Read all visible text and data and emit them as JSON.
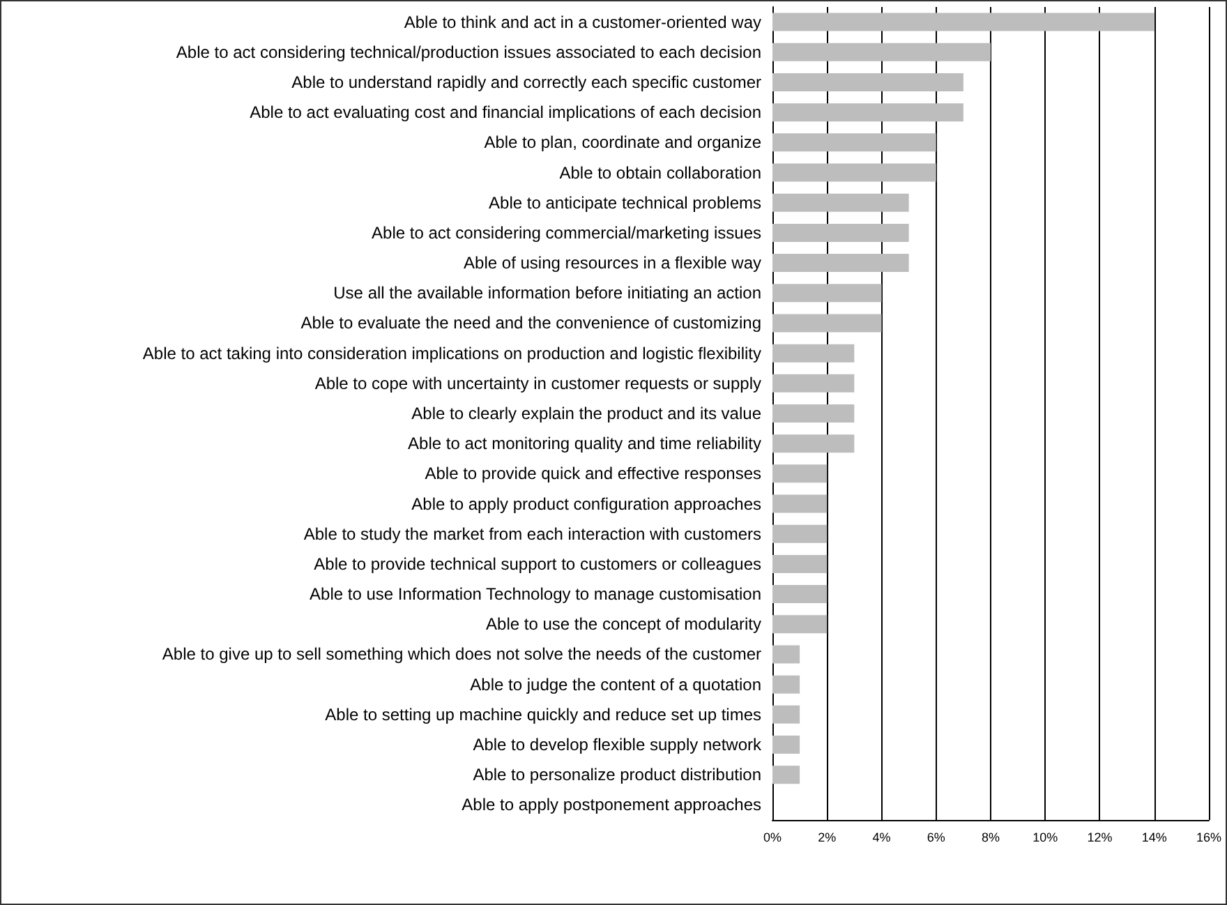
{
  "chart_data": {
    "type": "bar",
    "orientation": "horizontal",
    "categories": [
      "Able to think and act in a customer-oriented way",
      "Able to act considering technical/production issues associated to each decision",
      "Able to understand rapidly and correctly each specific customer",
      "Able to act evaluating cost and financial implications of each decision",
      "Able to plan, coordinate and organize",
      "Able to obtain collaboration",
      "Able to anticipate technical problems",
      "Able to act considering commercial/marketing issues",
      "Able of using resources in a flexible way",
      "Use all the available information before initiating an action",
      "Able to evaluate the need and the convenience of customizing",
      "Able to act taking into consideration implications on production and logistic flexibility",
      "Able to cope with uncertainty in customer requests or supply",
      "Able to clearly explain the product and its value",
      "Able to act monitoring quality and time reliability",
      "Able to provide quick and effective responses",
      "Able to apply product configuration approaches",
      "Able to study the market from each interaction with customers",
      "Able to provide technical support to customers or colleagues",
      "Able to use Information Technology to manage customisation",
      "Able to use the concept of modularity",
      "Able to give up to sell something which does not solve the needs of the customer",
      "Able to judge the content of a quotation",
      "Able to setting up machine quickly and reduce set up times",
      "Able to develop flexible supply network",
      "Able to personalize product distribution",
      "Able to apply postponement approaches"
    ],
    "values": [
      14,
      8,
      7,
      7,
      6,
      6,
      5,
      5,
      5,
      4,
      4,
      3,
      3,
      3,
      3,
      2,
      2,
      2,
      2,
      2,
      2,
      1,
      1,
      1,
      1,
      1,
      0
    ],
    "color": "#bdbdbd",
    "xlim": [
      0,
      16
    ],
    "xticks": [
      {
        "value": 0,
        "label": "0%"
      },
      {
        "value": 2,
        "label": "2%"
      },
      {
        "value": 4,
        "label": "4%"
      },
      {
        "value": 6,
        "label": "6%"
      },
      {
        "value": 8,
        "label": "8%"
      },
      {
        "value": 10,
        "label": "10%"
      },
      {
        "value": 12,
        "label": "12%"
      },
      {
        "value": 14,
        "label": "14%"
      },
      {
        "value": 16,
        "label": "16%"
      }
    ],
    "grid": "x"
  }
}
